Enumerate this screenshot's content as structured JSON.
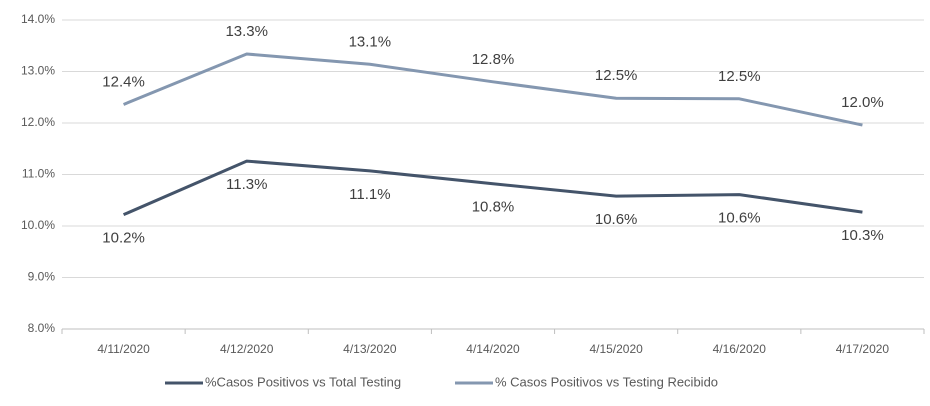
{
  "chart_data": {
    "type": "line",
    "categories": [
      "4/11/2020",
      "4/12/2020",
      "4/13/2020",
      "4/14/2020",
      "4/15/2020",
      "4/16/2020",
      "4/17/2020"
    ],
    "series": [
      {
        "name": "%Casos Positivos vs Total Testing",
        "color": "#44546a",
        "values": [
          10.22,
          11.26,
          11.07,
          10.82,
          10.58,
          10.61,
          10.27
        ],
        "value_labels": [
          "10.2%",
          "11.3%",
          "11.1%",
          "10.8%",
          "10.6%",
          "10.6%",
          "10.3%"
        ]
      },
      {
        "name": "% Casos Positivos vs Testing Recibido",
        "color": "#8497b0",
        "values": [
          12.36,
          13.34,
          13.14,
          12.8,
          12.48,
          12.47,
          11.96
        ],
        "value_labels": [
          "12.4%",
          "13.3%",
          "13.1%",
          "12.8%",
          "12.5%",
          "12.5%",
          "12.0%"
        ]
      }
    ],
    "ylim": [
      8,
      14
    ],
    "yticks": [
      {
        "value": 8,
        "label": "8.0%"
      },
      {
        "value": 9,
        "label": "9.0%"
      },
      {
        "value": 10,
        "label": "10.0%"
      },
      {
        "value": 11,
        "label": "11.0%"
      },
      {
        "value": 12,
        "label": "12.0%"
      },
      {
        "value": 13,
        "label": "13.0%"
      },
      {
        "value": 14,
        "label": "14.0%"
      }
    ],
    "grid": true,
    "legend": "bottom"
  }
}
